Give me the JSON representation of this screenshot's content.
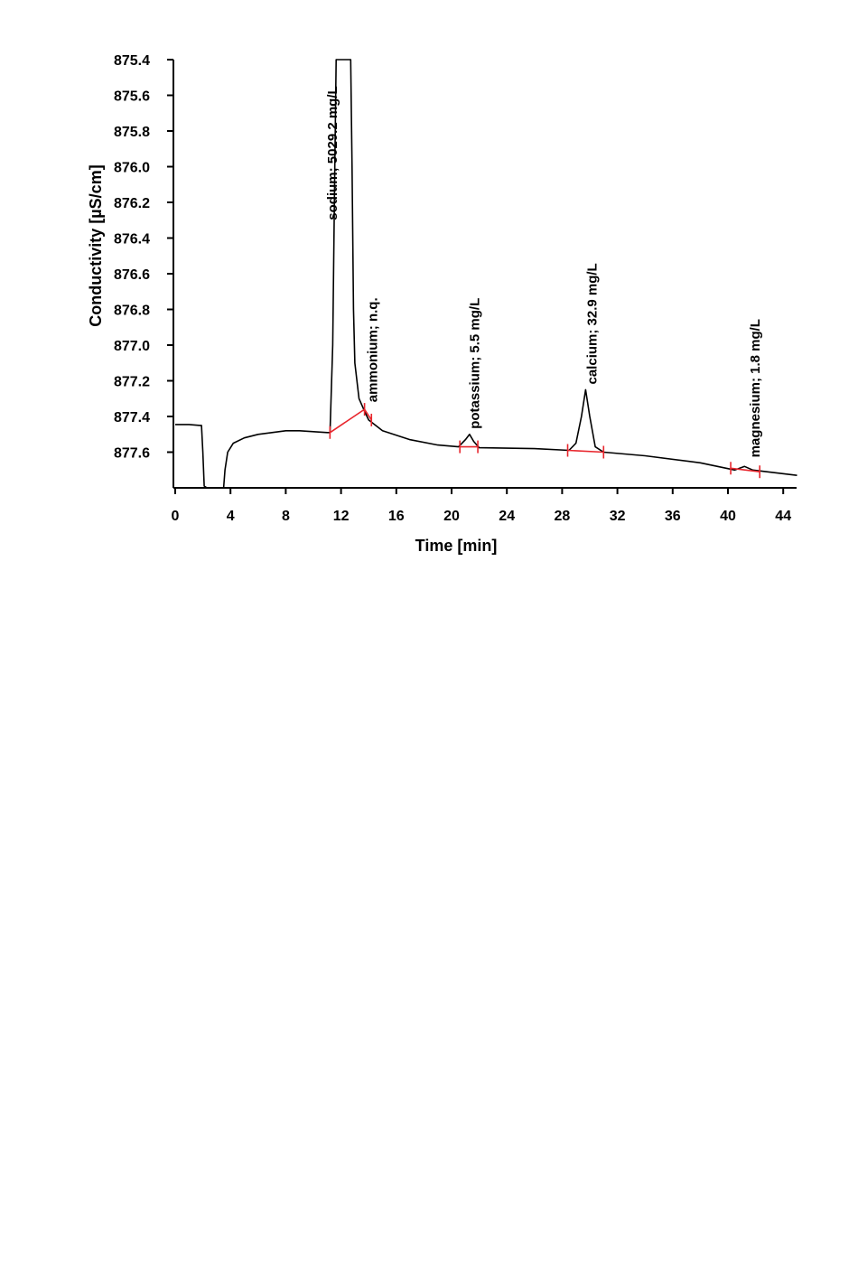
{
  "chart_data": {
    "type": "line",
    "title": "",
    "xlabel": "Time [min]",
    "ylabel": "Conductivity [µS/cm]",
    "xlim": [
      0,
      45
    ],
    "ylim": [
      875.4,
      877.8
    ],
    "y_inverted": true,
    "x_ticks": [
      0,
      4,
      8,
      12,
      16,
      20,
      24,
      28,
      32,
      36,
      40,
      44
    ],
    "x_tick_labels": [
      "0",
      "4",
      "8",
      "12",
      "16",
      "20",
      "24",
      "28",
      "32",
      "36",
      "40",
      "44"
    ],
    "y_ticks": [
      875.4,
      875.6,
      875.8,
      876.0,
      876.2,
      876.4,
      876.6,
      876.8,
      877.0,
      877.2,
      877.4,
      877.6
    ],
    "y_tick_labels": [
      "875.4",
      "875.6",
      "875.8",
      "876.0",
      "876.2",
      "876.4",
      "876.6",
      "876.8",
      "877.0",
      "877.2",
      "877.4",
      "877.6"
    ],
    "grid": false,
    "colors": {
      "trace": "#000000",
      "baseline": "#e8262d"
    },
    "series": [
      {
        "values_xy": [
          [
            0.0,
            877.445
          ],
          [
            1.0,
            877.445
          ],
          [
            1.8,
            877.45
          ],
          [
            1.9,
            877.45
          ],
          [
            2.0,
            877.6
          ],
          [
            2.1,
            877.79
          ],
          [
            2.3,
            877.8
          ],
          [
            3.5,
            877.8
          ],
          [
            3.6,
            877.7
          ],
          [
            3.8,
            877.6
          ],
          [
            4.2,
            877.55
          ],
          [
            5.0,
            877.52
          ],
          [
            6.0,
            877.5
          ],
          [
            8.0,
            877.48
          ],
          [
            9.0,
            877.48
          ],
          [
            10.0,
            877.485
          ],
          [
            11.0,
            877.49
          ],
          [
            11.2,
            877.49
          ],
          [
            11.4,
            877.0
          ],
          [
            11.55,
            876.0
          ],
          [
            11.65,
            875.4
          ],
          [
            12.7,
            875.4
          ],
          [
            12.8,
            876.0
          ],
          [
            12.9,
            876.8
          ],
          [
            13.0,
            877.1
          ],
          [
            13.3,
            877.3
          ],
          [
            13.7,
            877.37
          ],
          [
            14.0,
            877.42
          ],
          [
            15.0,
            877.48
          ],
          [
            17.0,
            877.53
          ],
          [
            19.0,
            877.56
          ],
          [
            20.5,
            877.57
          ],
          [
            21.0,
            877.53
          ],
          [
            21.3,
            877.5
          ],
          [
            21.6,
            877.54
          ],
          [
            22.0,
            877.575
          ],
          [
            26.0,
            877.58
          ],
          [
            28.5,
            877.59
          ],
          [
            29.0,
            877.55
          ],
          [
            29.4,
            877.4
          ],
          [
            29.7,
            877.25
          ],
          [
            30.0,
            877.4
          ],
          [
            30.4,
            877.57
          ],
          [
            31.0,
            877.6
          ],
          [
            34.0,
            877.62
          ],
          [
            38.0,
            877.66
          ],
          [
            40.5,
            877.7
          ],
          [
            41.2,
            877.68
          ],
          [
            41.8,
            877.7
          ],
          [
            45.0,
            877.73
          ]
        ]
      }
    ],
    "baseline_segments": [
      [
        [
          11.2,
          877.49
        ],
        [
          13.7,
          877.36
        ],
        [
          14.2,
          877.42
        ]
      ],
      [
        [
          20.6,
          877.57
        ],
        [
          21.9,
          877.57
        ]
      ],
      [
        [
          28.4,
          877.59
        ],
        [
          31.0,
          877.6
        ]
      ],
      [
        [
          40.2,
          877.69
        ],
        [
          42.3,
          877.71
        ]
      ]
    ],
    "baseline_marks": [
      [
        11.2,
        877.49
      ],
      [
        13.7,
        877.36
      ],
      [
        14.2,
        877.42
      ],
      [
        20.6,
        877.57
      ],
      [
        21.9,
        877.57
      ],
      [
        28.4,
        877.59
      ],
      [
        31.0,
        877.6
      ],
      [
        40.2,
        877.69
      ],
      [
        42.3,
        877.71
      ]
    ],
    "annotations": [
      {
        "text": "sodium; 5029.2 mg/L",
        "x": 11.3,
        "y": 876.3
      },
      {
        "text": "ammonium; n.q.",
        "x": 14.2,
        "y": 877.32
      },
      {
        "text": "potassium; 5.5 mg/L",
        "x": 21.6,
        "y": 877.47
      },
      {
        "text": "calcium; 32.9 mg/L",
        "x": 30.1,
        "y": 877.22
      },
      {
        "text": "magnesium; 1.8 mg/L",
        "x": 41.9,
        "y": 877.63
      }
    ]
  }
}
